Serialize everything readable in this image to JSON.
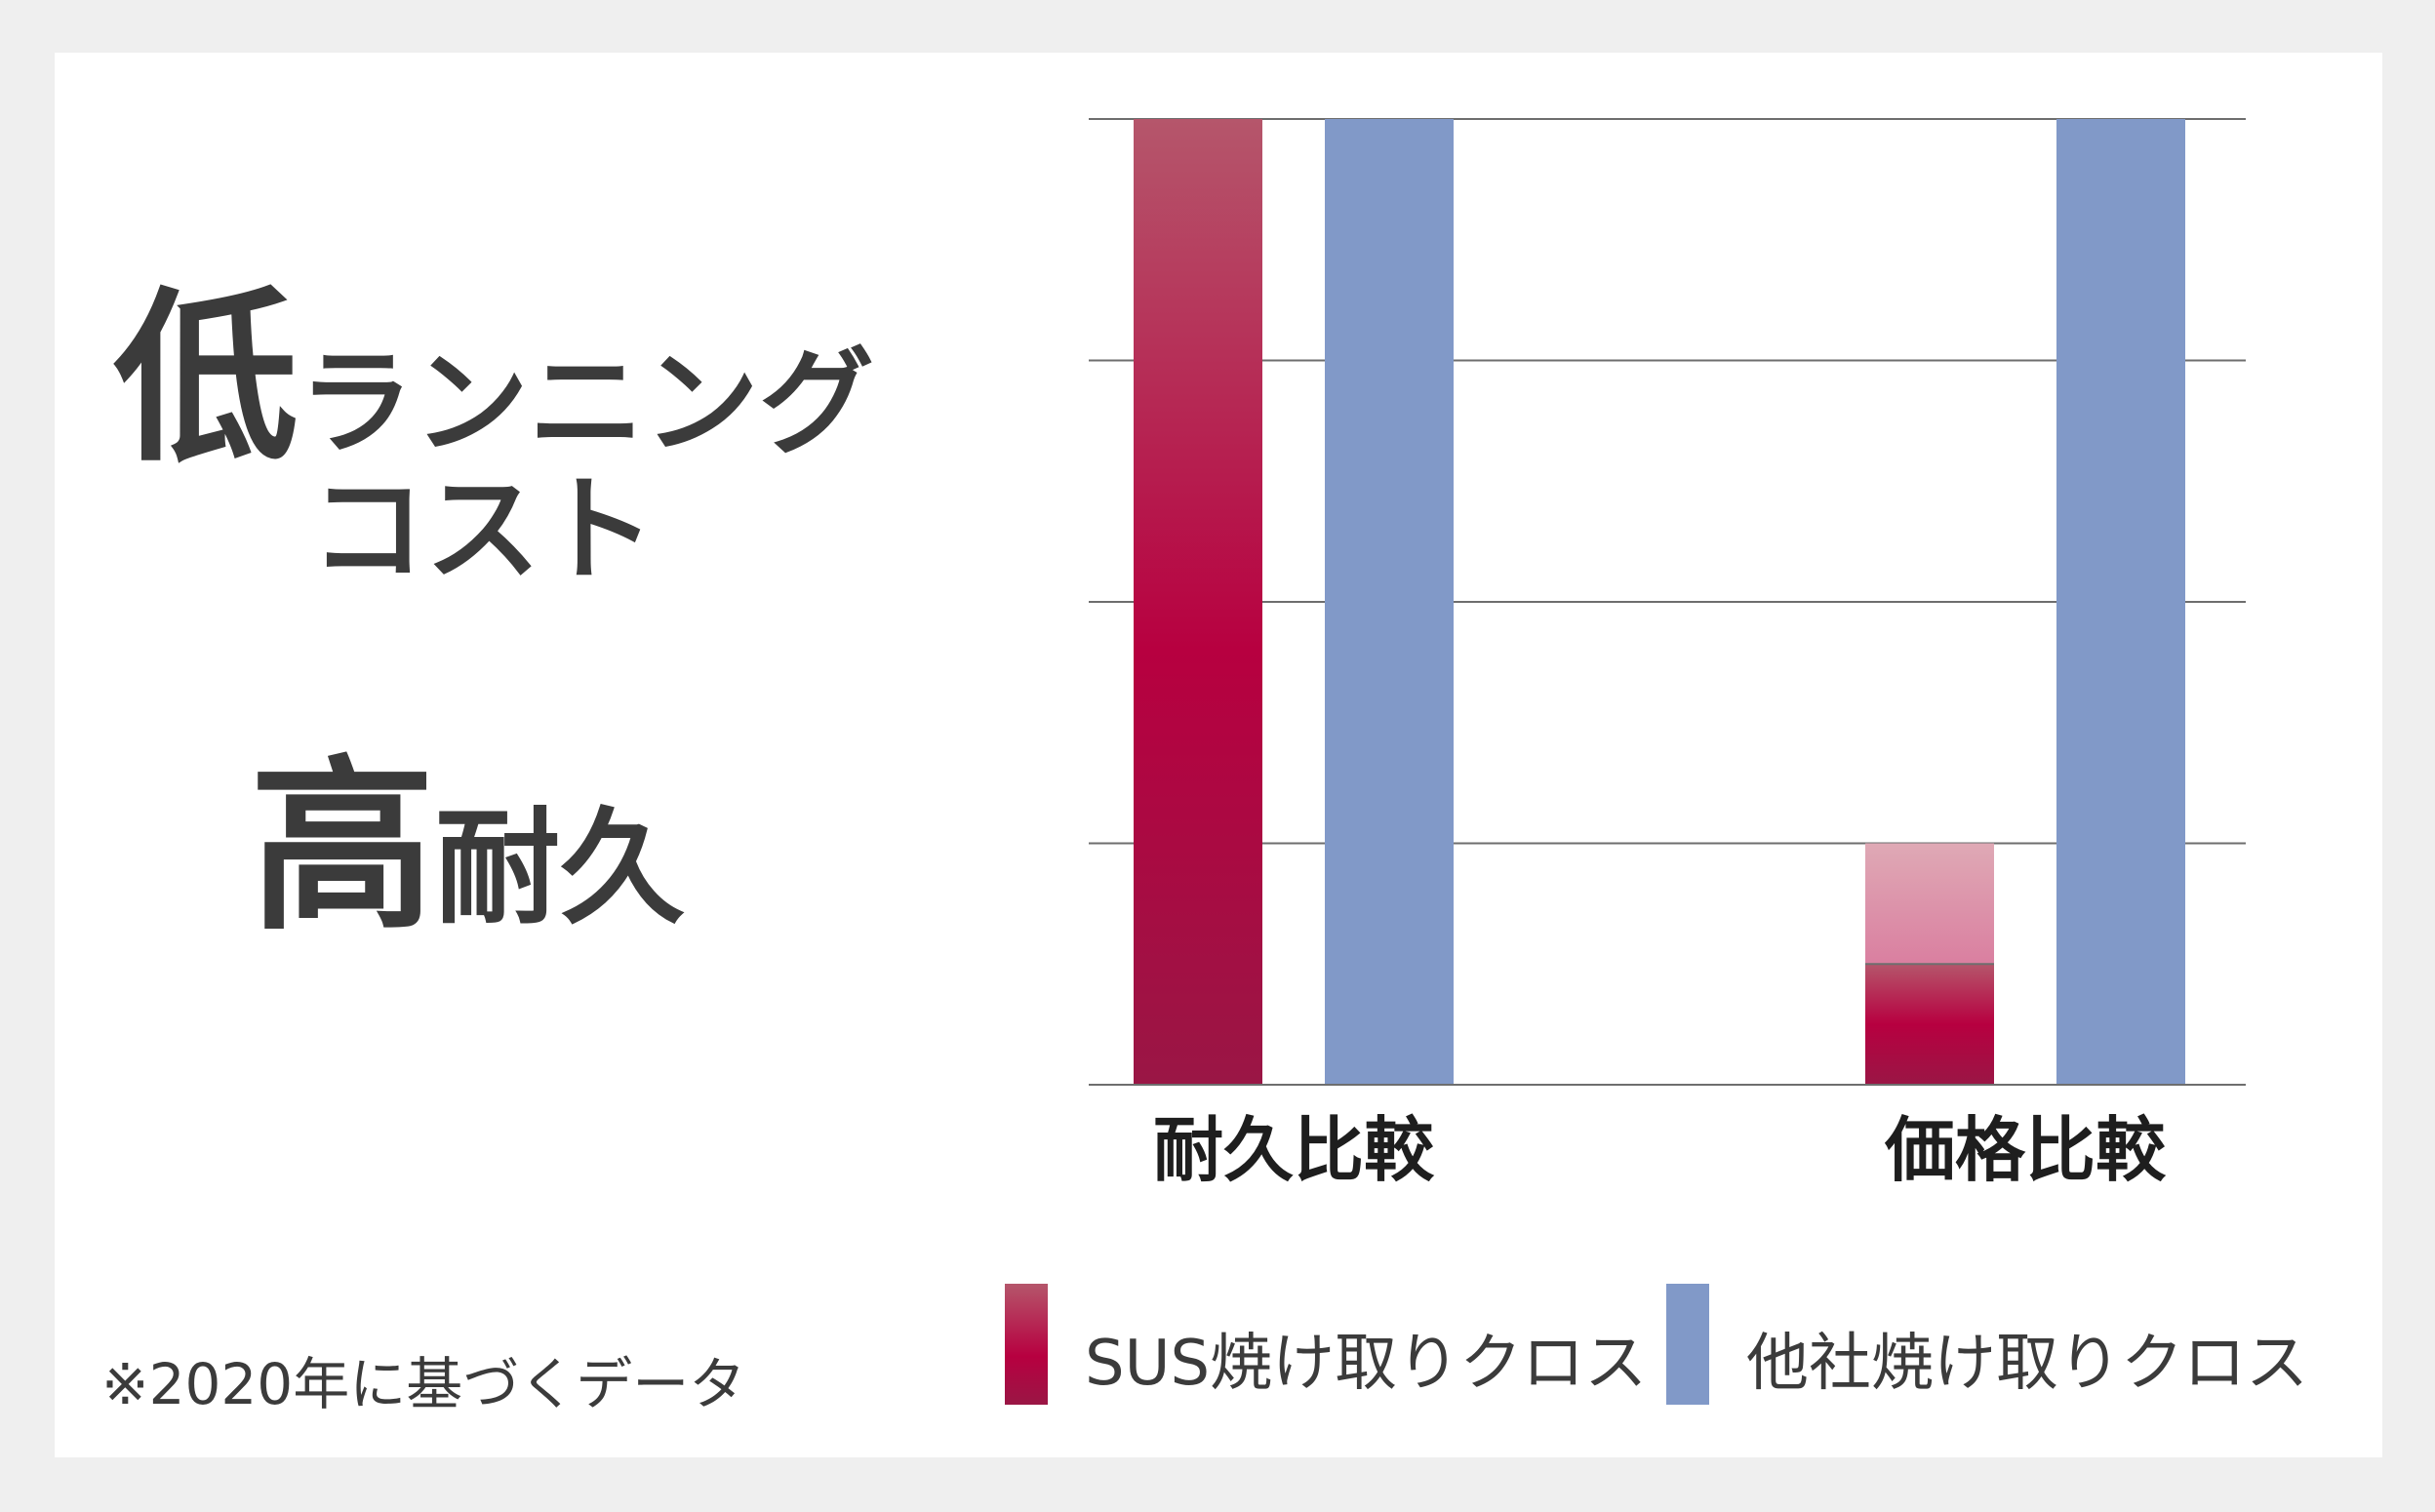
{
  "headline": {
    "line1_big": "低",
    "line1_rest": "ランニング",
    "line2": "コスト",
    "line3_big": "高",
    "line3_rest": "耐久"
  },
  "footnote": "※2020年に基づくデータ",
  "colors": {
    "sus_top": "#b5566b",
    "sus_mid": "#b70040",
    "sus_bottom": "#9a1645",
    "sus_light_top": "#dfa9b5",
    "sus_light_mid": "#da7fa0",
    "other": "#8199c8",
    "grid": "#6e6e6e"
  },
  "chart_data": {
    "type": "bar",
    "categories": [
      "耐久比較",
      "価格比較"
    ],
    "series": [
      {
        "name": "SUS焼け取りクロス",
        "values": [
          4,
          1
        ]
      },
      {
        "name": "他社焼け取りクロス",
        "values": [
          4,
          4
        ]
      }
    ],
    "ylim": [
      0,
      4
    ],
    "grid": true,
    "y_ticks_labeled": false,
    "legend": "bottom"
  }
}
